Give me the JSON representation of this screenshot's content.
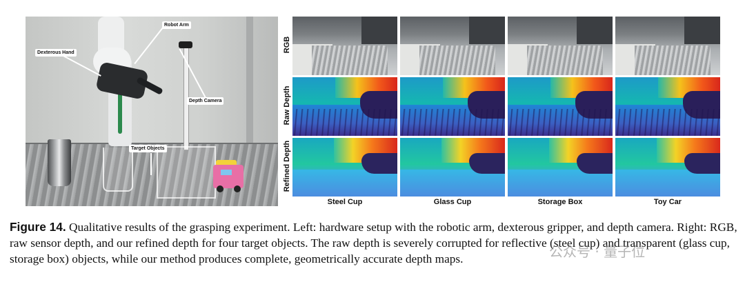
{
  "photo": {
    "callouts": {
      "robot_arm": "Robot Arm",
      "dexterous_hand": "Dexterous Hand",
      "depth_camera": "Depth Camera",
      "target_objects": "Target Objects"
    }
  },
  "grid": {
    "row_labels": [
      "RGB",
      "Raw Depth",
      "Refined Depth"
    ],
    "column_labels": [
      "Steel Cup",
      "Glass Cup",
      "Storage Box",
      "Toy Car"
    ]
  },
  "caption": {
    "figure_label": "Figure 14.",
    "text": " Qualitative results of the grasping experiment. Left: hardware setup with the robotic arm, dexterous gripper, and depth camera. Right: RGB, raw sensor depth, and our refined depth for four target objects. The raw depth is severely corrupted for reflective (steel cup) and transparent (glass cup, storage box) objects, while our method produces complete, geometrically accurate depth maps."
  },
  "watermark": "公众号 · 量子位"
}
